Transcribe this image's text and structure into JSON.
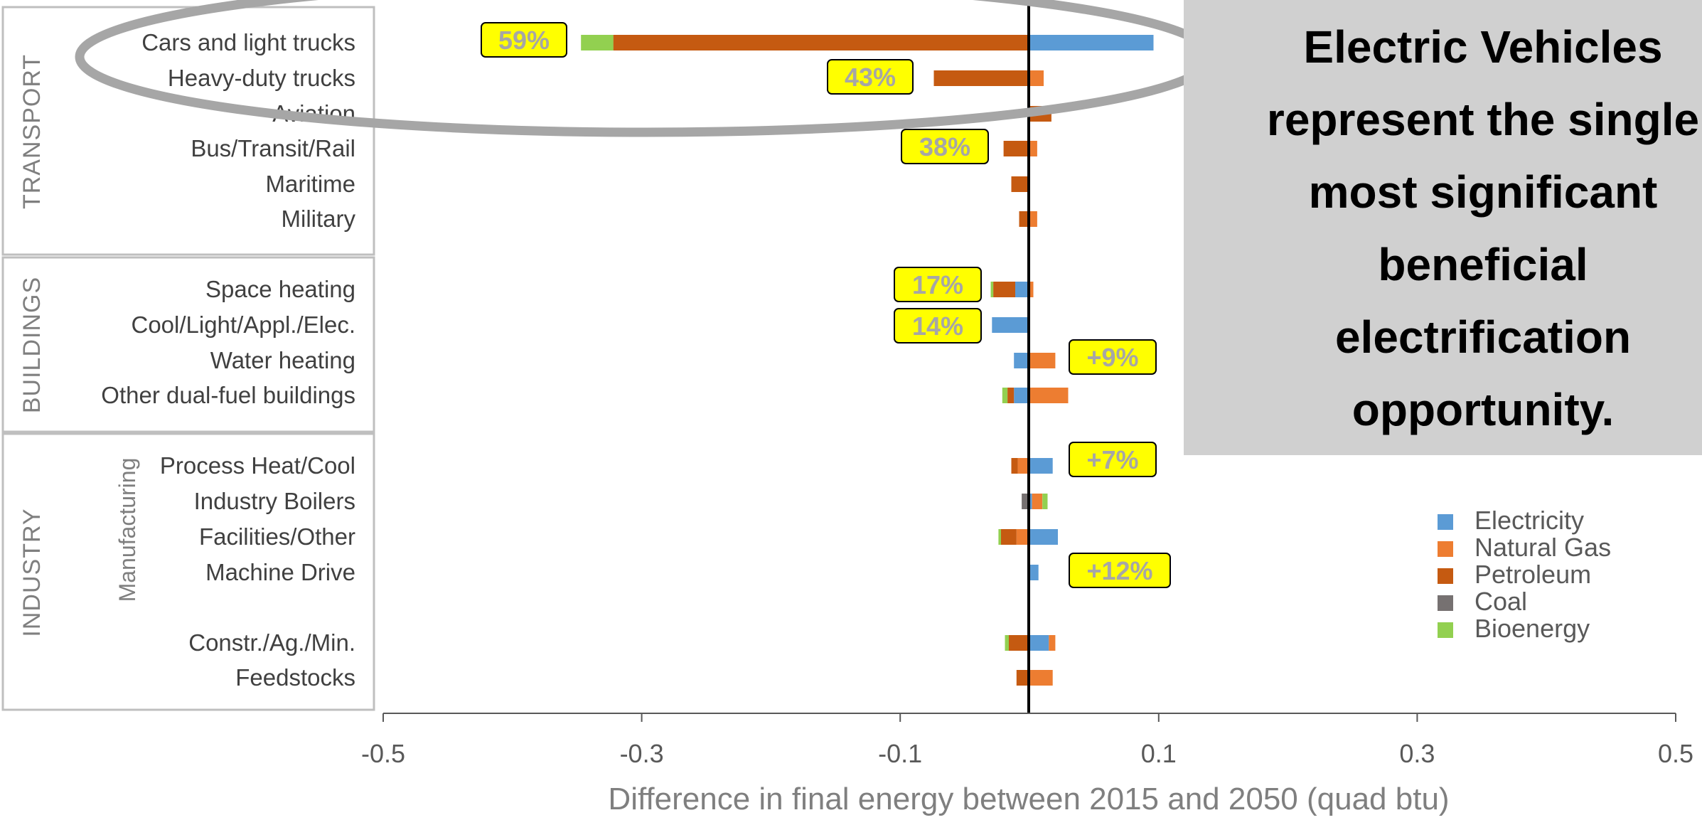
{
  "colors": {
    "Electricity": "#5b9bd5",
    "Natural Gas": "#ed7d31",
    "Petroleum": "#c55a11",
    "Coal": "#767171",
    "Bioenergy": "#92d050",
    "callout_fill": "#ffff00",
    "panel_fill": "#d0d0d0",
    "ellipse_stroke": "#a6a6a6"
  },
  "panel": {
    "lines": [
      "Electric Vehicles",
      "represent the single",
      "most significant",
      "beneficial",
      "electrification",
      "opportunity."
    ]
  },
  "chart_data": {
    "type": "bar",
    "orientation": "horizontal",
    "stacked": true,
    "xlabel": "Difference in final energy between 2015 and 2050 (quad btu)",
    "xlim": [
      -0.5,
      0.5
    ],
    "xticks": [
      -0.5,
      -0.3,
      -0.1,
      0.1,
      0.3,
      0.5
    ],
    "xtick_labels": [
      "-0.5",
      "-0.3",
      "-0.1",
      "0.1",
      "0.3",
      "0.5"
    ],
    "legend_position": "right",
    "groups": [
      {
        "name": "TRANSPORT",
        "sublabel": "",
        "categories": [
          "Cars and light trucks",
          "Heavy-duty trucks",
          "Aviation",
          "Bus/Transit/Rail",
          "Maritime",
          "Military"
        ]
      },
      {
        "name": "BUILDINGS",
        "sublabel": "",
        "categories": [
          "Space heating",
          "Cool/Light/Appl./Elec.",
          "Water heating",
          "Other dual-fuel buildings"
        ]
      },
      {
        "name": "INDUSTRY",
        "sublabel": "Manufacturing",
        "categories": [
          "Process Heat/Cool",
          "Industry Boilers",
          "Facilities/Other",
          "Machine Drive",
          "Constr./Ag./Min.",
          "Feedstocks"
        ]
      }
    ],
    "categories": [
      "Cars and light trucks",
      "Heavy-duty trucks",
      "Aviation",
      "Bus/Transit/Rail",
      "Maritime",
      "Military",
      "Space heating",
      "Cool/Light/Appl./Elec.",
      "Water heating",
      "Other dual-fuel buildings",
      "Process Heat/Cool",
      "Industry Boilers",
      "Facilities/Other",
      "Machine Drive",
      "Constr./Ag./Min.",
      "Feedstocks"
    ],
    "series": [
      {
        "name": "Electricity",
        "values": [
          0.096,
          0.0,
          0.0,
          0.0,
          0.0,
          0.0,
          -0.011,
          -0.029,
          -0.012,
          -0.012,
          0.018,
          0.002,
          0.022,
          0.007,
          0.015,
          0.0
        ]
      },
      {
        "name": "Natural Gas",
        "values": [
          0.0,
          0.011,
          0.0,
          0.006,
          0.0,
          0.006,
          0.003,
          0.0,
          0.02,
          0.03,
          -0.009,
          0.008,
          -0.01,
          0.0,
          0.005,
          0.018
        ]
      },
      {
        "name": "Petroleum",
        "values": [
          -0.322,
          -0.074,
          0.017,
          -0.02,
          -0.014,
          -0.008,
          -0.017,
          0.0,
          0.0,
          -0.005,
          -0.005,
          0.0,
          -0.012,
          0.0,
          -0.016,
          -0.01
        ]
      },
      {
        "name": "Coal",
        "values": [
          0.0,
          0.0,
          0.0,
          0.0,
          0.0,
          0.0,
          0.0,
          0.0,
          0.0,
          0.0,
          0.0,
          -0.006,
          0.0,
          0.0,
          0.0,
          0.0
        ]
      },
      {
        "name": "Bioenergy",
        "values": [
          -0.025,
          0.0,
          0.0,
          0.0,
          0.0,
          0.0,
          -0.002,
          0.0,
          0.0,
          -0.004,
          0.0,
          0.004,
          -0.002,
          0.0,
          -0.003,
          0.0
        ]
      }
    ],
    "annotations": [
      {
        "category": "Cars and light trucks",
        "text": "59%"
      },
      {
        "category": "Heavy-duty trucks",
        "text": "43%"
      },
      {
        "category": "Bus/Transit/Rail",
        "text": "38%"
      },
      {
        "category": "Space heating",
        "text": "17%"
      },
      {
        "category": "Cool/Light/Appl./Elec.",
        "text": "14%"
      },
      {
        "category": "Water heating",
        "text": "+9%"
      },
      {
        "category": "Process Heat/Cool",
        "text": "+7%"
      },
      {
        "category": "Machine Drive",
        "text": "+12%"
      }
    ]
  }
}
